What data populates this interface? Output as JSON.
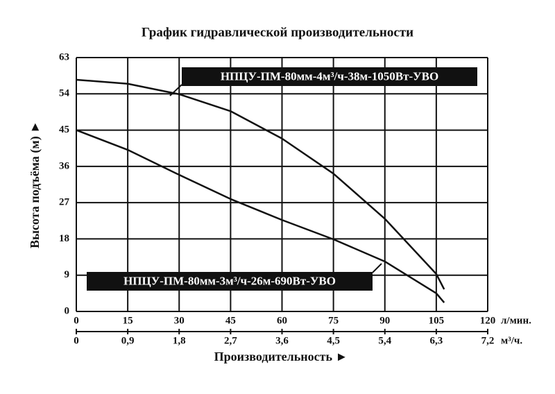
{
  "chart_data": {
    "type": "line",
    "title": "График гидравлической производительности",
    "x_label": "Производительность ►",
    "y_label": "Высота подъёма (м) ►",
    "x_unit": "л/мин.",
    "x2_unit": "м³/ч.",
    "xlim": [
      0,
      120
    ],
    "xticks": [
      0,
      15,
      30,
      45,
      60,
      75,
      90,
      105,
      120
    ],
    "x2lim": [
      0,
      7.2
    ],
    "x2ticks": [
      0,
      {
        "value": 0.9,
        "label": "0,9"
      },
      {
        "value": 1.8,
        "label": "1,8"
      },
      {
        "value": 2.7,
        "label": "2,7"
      },
      {
        "value": 3.6,
        "label": "3,6"
      },
      {
        "value": 4.5,
        "label": "4,5"
      },
      {
        "value": 5.4,
        "label": "5,4"
      },
      {
        "value": 6.3,
        "label": "6,3"
      },
      {
        "value": 7.2,
        "label": "7,2"
      }
    ],
    "ylim": [
      0,
      63
    ],
    "yticks": [
      0,
      9,
      18,
      27,
      36,
      45,
      54,
      63
    ],
    "grid": true,
    "series": [
      {
        "name": "НПЦУ-ПМ-80мм-4м³/ч-38м-1050Вт-УВО",
        "color": "#111111",
        "x": [
          0,
          15,
          30,
          45,
          60,
          75,
          90,
          105,
          107.3
        ],
        "values": [
          57.5,
          56.5,
          53.9,
          49.7,
          42.9,
          34.2,
          23,
          9.3,
          5.5
        ]
      },
      {
        "name": "НПЦУ-ПМ-80мм-3м³/ч-26м-690Вт-УВО",
        "color": "#111111",
        "x": [
          0,
          15,
          30,
          45,
          60,
          75,
          90,
          105,
          107.3
        ],
        "values": [
          45,
          40.1,
          33.9,
          27.9,
          22.7,
          17.9,
          12.4,
          4.5,
          2.2
        ]
      }
    ]
  }
}
